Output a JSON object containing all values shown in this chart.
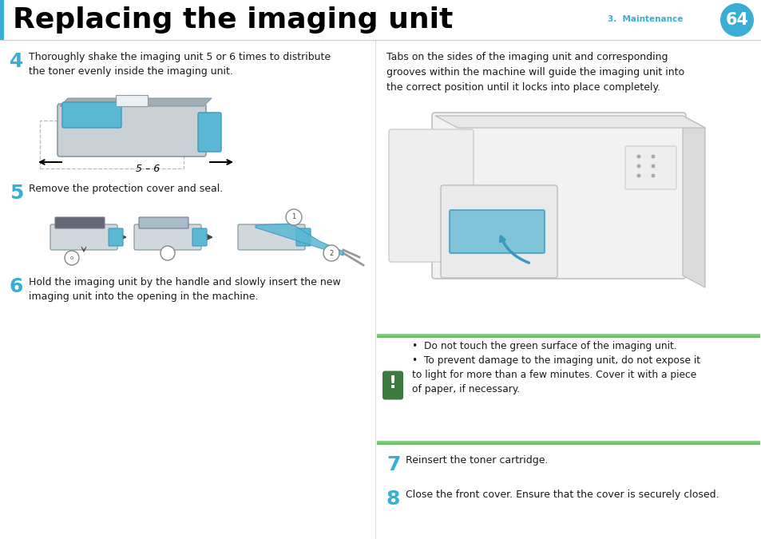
{
  "title": "Replacing the imaging unit",
  "title_color": "#000000",
  "title_fontsize": 26,
  "accent_color": "#3AADD4",
  "page_num": "64",
  "page_num_bg": "#3AADD4",
  "section_label": "3.  Maintenance",
  "section_color": "#3AADD4",
  "left_bar_color": "#3AADD4",
  "step4_num": "4",
  "step4_text": "Thoroughly shake the imaging unit 5 or 6 times to distribute\nthe toner evenly inside the imaging unit.",
  "step5_num": "5",
  "step5_text": "Remove the protection cover and seal.",
  "step6_num": "6",
  "step6_text": "Hold the imaging unit by the handle and slowly insert the new\nimaging unit into the opening in the machine.",
  "right_top_text": "Tabs on the sides of the imaging unit and corresponding\ngrooves within the machine will guide the imaging unit into\nthe correct position until it locks into place completely.",
  "warning_icon_bg": "#3D7A3D",
  "warning_bar_color": "#7DC87D",
  "warning_line1": "Do not touch the green surface of the imaging unit.",
  "warning_line2": "To prevent damage to the imaging unit, do not expose it\nto light for more than a few minutes. Cover it with a piece\nof paper, if necessary.",
  "step7_num": "7",
  "step7_text": "Reinsert the toner cartridge.",
  "step8_num": "8",
  "step8_text": "Close the front cover. Ensure that the cover is securely closed.",
  "body_bg": "#FFFFFF",
  "text_color": "#1A1A1A",
  "divX": 470
}
